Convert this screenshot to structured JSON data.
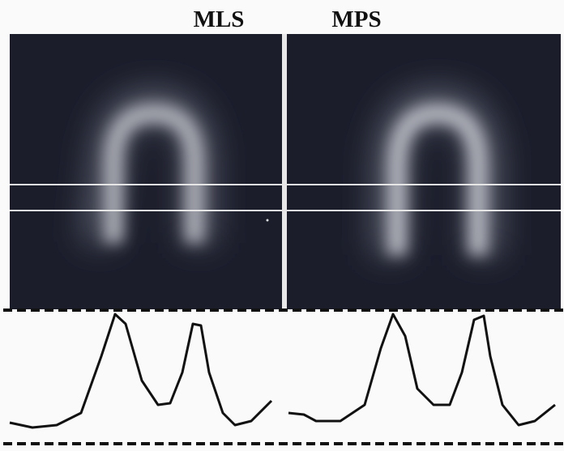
{
  "panels": [
    {
      "label": "MLS"
    },
    {
      "label": "MPS"
    }
  ]
}
